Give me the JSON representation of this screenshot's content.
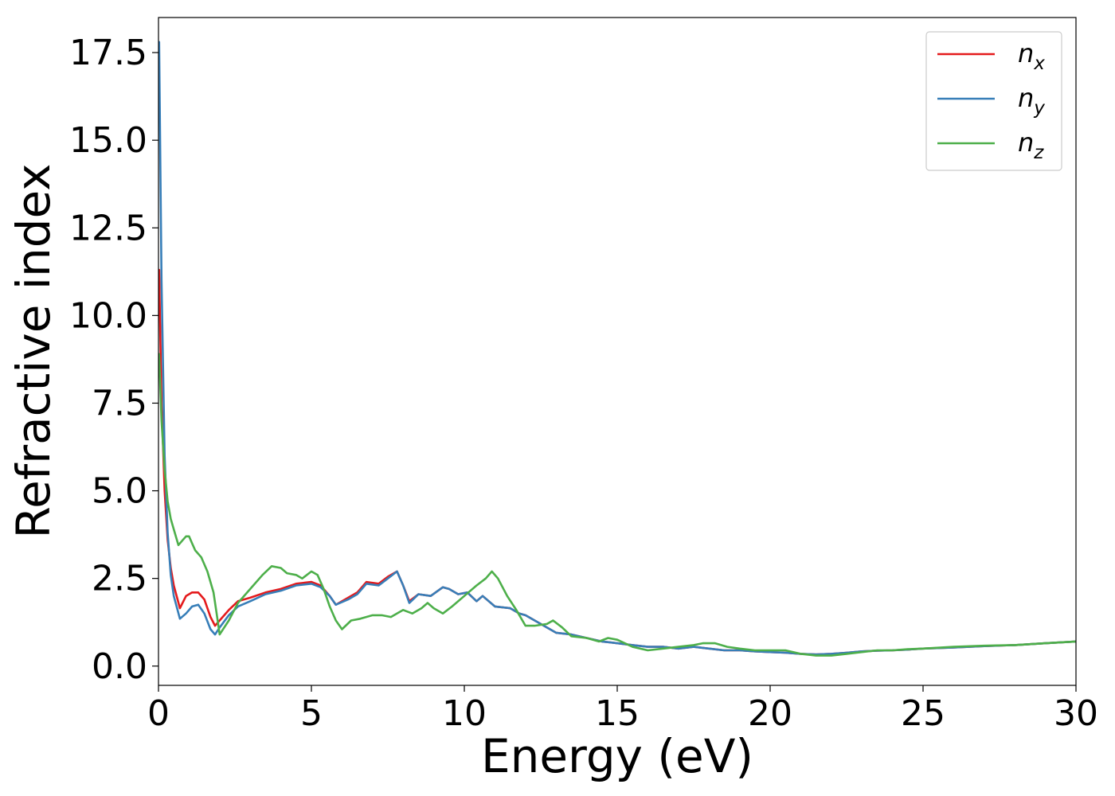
{
  "chart_data": {
    "type": "line",
    "xlabel": "Energy (eV)",
    "ylabel": "Refractive index",
    "xlim": [
      0,
      30
    ],
    "ylim": [
      -0.55,
      18.5
    ],
    "xticks": [
      0,
      5,
      10,
      15,
      20,
      25,
      30
    ],
    "xtick_labels": [
      "0",
      "5",
      "10",
      "15",
      "20",
      "25",
      "30"
    ],
    "yticks": [
      0,
      2.5,
      5,
      7.5,
      10,
      12.5,
      15,
      17.5
    ],
    "ytick_labels": [
      "0.0",
      "2.5",
      "5.0",
      "7.5",
      "10.0",
      "12.5",
      "15.0",
      "17.5"
    ],
    "grid": false,
    "legend_position": "top-right",
    "series": [
      {
        "name": "n",
        "subscript": "x",
        "color": "#e41a1c",
        "x": [
          0.02,
          0.1,
          0.2,
          0.3,
          0.4,
          0.5,
          0.7,
          0.9,
          1.1,
          1.3,
          1.5,
          1.7,
          1.85,
          2.0,
          2.3,
          2.6,
          3.0,
          3.5,
          4.0,
          4.5,
          5.0,
          5.3,
          5.6,
          5.8,
          6.2,
          6.5,
          6.8,
          7.2,
          7.5,
          7.8,
          8.0,
          8.2,
          8.5,
          8.9,
          9.3,
          9.5,
          9.8,
          10.1,
          10.4,
          10.6,
          11.0,
          11.5,
          11.8,
          12.0,
          12.5,
          13.0,
          13.5,
          14.0,
          14.5,
          15.0,
          15.5,
          16.0,
          16.5,
          17.0,
          17.5,
          18.0,
          18.5,
          19.0,
          19.5,
          20.0,
          20.5,
          21.0,
          21.5,
          22.0,
          22.5,
          23.0,
          23.5,
          24.0,
          24.5,
          25.0,
          26.0,
          27.0,
          28.0,
          29.0,
          30.0
        ],
        "values": [
          11.3,
          7.5,
          5.0,
          3.6,
          2.8,
          2.3,
          1.65,
          2.0,
          2.1,
          2.1,
          1.9,
          1.4,
          1.15,
          1.3,
          1.6,
          1.85,
          1.95,
          2.1,
          2.2,
          2.35,
          2.4,
          2.3,
          2.0,
          1.75,
          1.95,
          2.1,
          2.4,
          2.35,
          2.55,
          2.7,
          2.3,
          1.85,
          2.05,
          2.0,
          2.25,
          2.2,
          2.05,
          2.1,
          1.85,
          2.0,
          1.7,
          1.65,
          1.5,
          1.45,
          1.2,
          0.95,
          0.9,
          0.8,
          0.7,
          0.65,
          0.6,
          0.55,
          0.55,
          0.5,
          0.55,
          0.5,
          0.45,
          0.45,
          0.42,
          0.4,
          0.38,
          0.35,
          0.33,
          0.35,
          0.38,
          0.42,
          0.44,
          0.45,
          0.47,
          0.5,
          0.53,
          0.57,
          0.6,
          0.65,
          0.7
        ]
      },
      {
        "name": "n",
        "subscript": "y",
        "color": "#377eb8",
        "x": [
          0.02,
          0.1,
          0.2,
          0.3,
          0.4,
          0.5,
          0.7,
          0.9,
          1.1,
          1.3,
          1.5,
          1.7,
          1.85,
          2.0,
          2.3,
          2.6,
          3.0,
          3.5,
          4.0,
          4.5,
          5.0,
          5.3,
          5.6,
          5.8,
          6.2,
          6.5,
          6.8,
          7.2,
          7.5,
          7.8,
          8.0,
          8.2,
          8.5,
          8.9,
          9.3,
          9.5,
          9.8,
          10.1,
          10.4,
          10.6,
          11.0,
          11.5,
          11.8,
          12.0,
          12.5,
          13.0,
          13.5,
          14.0,
          14.5,
          15.0,
          15.5,
          16.0,
          16.5,
          17.0,
          17.5,
          18.0,
          18.5,
          19.0,
          19.5,
          20.0,
          20.5,
          21.0,
          21.5,
          22.0,
          22.5,
          23.0,
          23.5,
          24.0,
          24.5,
          25.0,
          26.0,
          27.0,
          28.0,
          29.0,
          30.0
        ],
        "values": [
          17.8,
          11.0,
          6.0,
          3.8,
          2.6,
          2.0,
          1.35,
          1.5,
          1.7,
          1.75,
          1.5,
          1.05,
          0.9,
          1.1,
          1.45,
          1.7,
          1.85,
          2.05,
          2.15,
          2.3,
          2.35,
          2.25,
          2.0,
          1.75,
          1.9,
          2.05,
          2.35,
          2.3,
          2.5,
          2.7,
          2.3,
          1.8,
          2.05,
          2.0,
          2.25,
          2.2,
          2.05,
          2.1,
          1.85,
          2.0,
          1.7,
          1.65,
          1.5,
          1.45,
          1.2,
          0.95,
          0.9,
          0.8,
          0.7,
          0.65,
          0.6,
          0.55,
          0.55,
          0.5,
          0.55,
          0.5,
          0.45,
          0.45,
          0.42,
          0.4,
          0.38,
          0.35,
          0.33,
          0.35,
          0.38,
          0.42,
          0.44,
          0.45,
          0.47,
          0.5,
          0.53,
          0.57,
          0.6,
          0.65,
          0.7
        ]
      },
      {
        "name": "n",
        "subscript": "z",
        "color": "#4daf4a",
        "x": [
          0.02,
          0.1,
          0.2,
          0.3,
          0.4,
          0.5,
          0.65,
          0.8,
          0.9,
          1.0,
          1.1,
          1.2,
          1.4,
          1.6,
          1.8,
          1.9,
          2.0,
          2.3,
          2.6,
          3.0,
          3.4,
          3.7,
          4.0,
          4.2,
          4.5,
          4.7,
          5.0,
          5.2,
          5.4,
          5.6,
          5.8,
          6.0,
          6.3,
          6.6,
          7.0,
          7.3,
          7.6,
          8.0,
          8.3,
          8.6,
          8.8,
          9.0,
          9.3,
          9.6,
          10.0,
          10.4,
          10.7,
          10.9,
          11.1,
          11.4,
          11.7,
          12.0,
          12.3,
          12.7,
          12.9,
          13.2,
          13.5,
          14.0,
          14.4,
          14.7,
          15.0,
          15.5,
          16.0,
          16.5,
          17.0,
          17.5,
          17.8,
          18.2,
          18.6,
          19.0,
          19.5,
          20.0,
          20.5,
          21.0,
          21.5,
          22.0,
          22.5,
          23.0,
          23.5,
          24.0,
          24.5,
          25.0,
          26.0,
          27.0,
          28.0,
          29.0,
          30.0
        ],
        "values": [
          8.9,
          7.0,
          5.6,
          4.7,
          4.2,
          3.9,
          3.45,
          3.6,
          3.7,
          3.7,
          3.5,
          3.3,
          3.1,
          2.7,
          2.1,
          1.5,
          0.9,
          1.3,
          1.8,
          2.2,
          2.6,
          2.85,
          2.8,
          2.65,
          2.6,
          2.5,
          2.7,
          2.6,
          2.2,
          1.7,
          1.3,
          1.05,
          1.3,
          1.35,
          1.45,
          1.45,
          1.4,
          1.6,
          1.5,
          1.65,
          1.8,
          1.65,
          1.5,
          1.7,
          2.0,
          2.3,
          2.5,
          2.7,
          2.5,
          2.0,
          1.6,
          1.15,
          1.15,
          1.2,
          1.3,
          1.1,
          0.85,
          0.8,
          0.7,
          0.8,
          0.75,
          0.55,
          0.45,
          0.5,
          0.55,
          0.6,
          0.65,
          0.65,
          0.55,
          0.5,
          0.45,
          0.45,
          0.45,
          0.35,
          0.3,
          0.3,
          0.35,
          0.4,
          0.45,
          0.45,
          0.48,
          0.5,
          0.55,
          0.58,
          0.6,
          0.65,
          0.7
        ]
      }
    ]
  }
}
